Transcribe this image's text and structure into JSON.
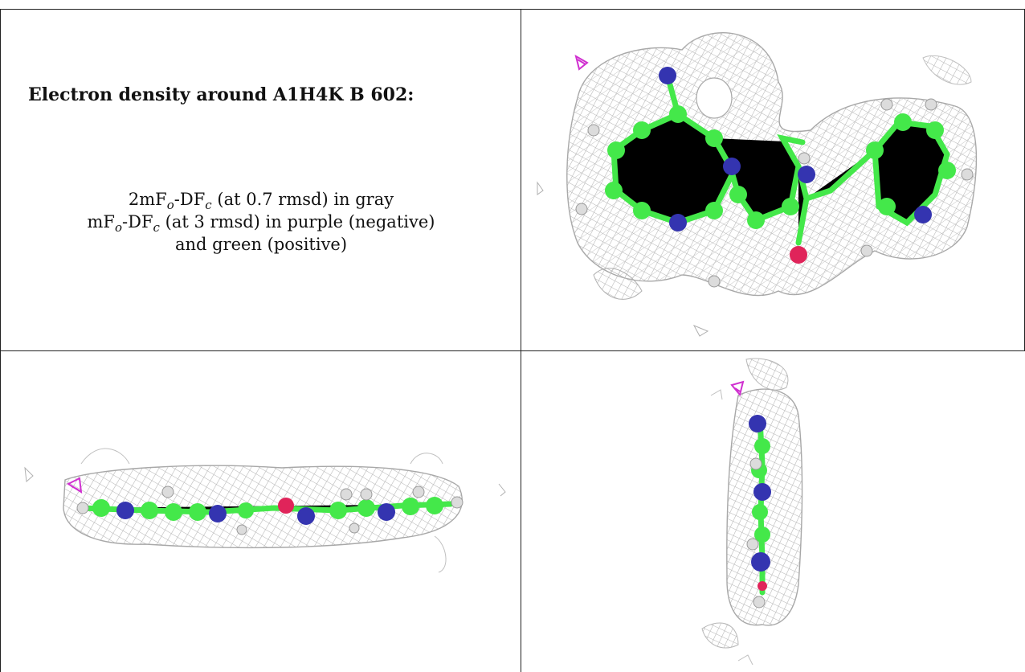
{
  "caption": {
    "title": "Electron density around A1H4K B 602:",
    "line1": {
      "prefix": "2mF",
      "sub_o": "o",
      "mid": "-DF",
      "sub_c": "c",
      "rest": " (at 0.7 rmsd) in gray"
    },
    "line2": {
      "prefix": "mF",
      "sub_o": "o",
      "mid": "-DF",
      "sub_c": "c",
      "rest": " (at 3 rmsd) in purple (negative)"
    },
    "line3": "and green (positive)"
  },
  "colors": {
    "mesh": "#b4b4b4",
    "carbon": "#44e84a",
    "nitrogen": "#3434b0",
    "oxygen": "#e0245a",
    "hydrogen": "#dcdcdc",
    "negative_density": "#d030d0",
    "border": "#222222"
  },
  "panels": [
    {
      "view": "top"
    },
    {
      "view": "side"
    },
    {
      "view": "end"
    }
  ]
}
